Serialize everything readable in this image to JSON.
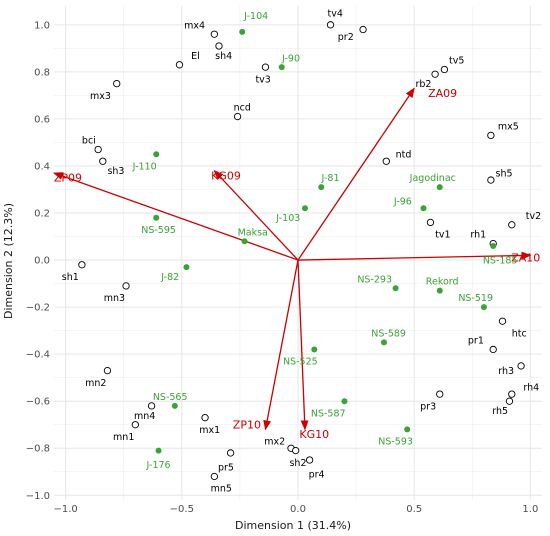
{
  "chart_data": {
    "type": "scatter",
    "subtype": "biplot",
    "xlabel": "Dimension 1 (31.4%)",
    "ylabel": "Dimension 2 (12.3%)",
    "xlim": [
      -1.05,
      1.05
    ],
    "ylim": [
      -1.02,
      1.08
    ],
    "xticks": [
      "−1.0",
      "−0.5",
      "0.0",
      "0.5",
      "1.0"
    ],
    "xtick_values": [
      -1.0,
      -0.5,
      0.0,
      0.5,
      1.0
    ],
    "yticks": [
      "−1.0",
      "−0.8",
      "−0.6",
      "−0.4",
      "−0.2",
      "0.0",
      "0.2",
      "0.4",
      "0.6",
      "0.8",
      "1.0"
    ],
    "ytick_values": [
      -1.0,
      -0.8,
      -0.6,
      -0.4,
      -0.2,
      0.0,
      0.2,
      0.4,
      0.6,
      0.8,
      1.0
    ],
    "grid": true,
    "colors": {
      "vector": "#cc0000",
      "genotype": "#3aa335",
      "variable_point": "#000000",
      "grid": "#ebebeb"
    },
    "vectors": [
      {
        "label": "ZA09",
        "x": 0.5,
        "y": 0.73,
        "lx": 0.56,
        "ly": 0.71,
        "anchor": "start"
      },
      {
        "label": "ZP09",
        "x": -1.05,
        "y": 0.37,
        "lx": -0.99,
        "ly": 0.35,
        "anchor": "middle"
      },
      {
        "label": "KG09",
        "x": -0.36,
        "y": 0.38,
        "lx": -0.31,
        "ly": 0.36,
        "anchor": "middle"
      },
      {
        "label": "ZA10",
        "x": 1.0,
        "y": 0.02,
        "lx": 0.98,
        "ly": 0.01,
        "anchor": "middle"
      },
      {
        "label": "ZP10",
        "x": -0.14,
        "y": -0.72,
        "lx": -0.22,
        "ly": -0.7,
        "anchor": "middle"
      },
      {
        "label": "KG10",
        "x": 0.03,
        "y": -0.72,
        "lx": 0.07,
        "ly": -0.74,
        "anchor": "middle"
      }
    ],
    "variables": [
      {
        "label": "tv4",
        "x": 0.14,
        "y": 1.0,
        "lx": 0.16,
        "ly": 1.05,
        "anchor": "middle"
      },
      {
        "label": "pr2",
        "x": 0.28,
        "y": 0.98,
        "lx": 0.24,
        "ly": 0.95,
        "anchor": "end"
      },
      {
        "label": "mx4",
        "x": -0.36,
        "y": 0.96,
        "lx": -0.4,
        "ly": 1.0,
        "anchor": "end"
      },
      {
        "label": "sh4",
        "x": -0.34,
        "y": 0.91,
        "lx": -0.32,
        "ly": 0.87,
        "anchor": "middle"
      },
      {
        "label": "El",
        "x": -0.51,
        "y": 0.83,
        "lx": -0.46,
        "ly": 0.87,
        "anchor": "start"
      },
      {
        "label": "tv3",
        "x": -0.14,
        "y": 0.82,
        "lx": -0.15,
        "ly": 0.77,
        "anchor": "middle"
      },
      {
        "label": "tv5",
        "x": 0.63,
        "y": 0.81,
        "lx": 0.65,
        "ly": 0.85,
        "anchor": "start"
      },
      {
        "label": "rb2",
        "x": 0.59,
        "y": 0.79,
        "lx": 0.54,
        "ly": 0.75,
        "anchor": "middle"
      },
      {
        "label": "mx3",
        "x": -0.78,
        "y": 0.75,
        "lx": -0.85,
        "ly": 0.7,
        "anchor": "middle"
      },
      {
        "label": "ncd",
        "x": -0.26,
        "y": 0.61,
        "lx": -0.24,
        "ly": 0.65,
        "anchor": "middle"
      },
      {
        "label": "mx5",
        "x": 0.83,
        "y": 0.53,
        "lx": 0.86,
        "ly": 0.57,
        "anchor": "start"
      },
      {
        "label": "bci",
        "x": -0.86,
        "y": 0.47,
        "lx": -0.87,
        "ly": 0.51,
        "anchor": "end"
      },
      {
        "label": "sh3",
        "x": -0.84,
        "y": 0.42,
        "lx": -0.82,
        "ly": 0.38,
        "anchor": "start"
      },
      {
        "label": "ntd",
        "x": 0.38,
        "y": 0.42,
        "lx": 0.42,
        "ly": 0.45,
        "anchor": "start"
      },
      {
        "label": "sh5",
        "x": 0.83,
        "y": 0.34,
        "lx": 0.85,
        "ly": 0.37,
        "anchor": "start"
      },
      {
        "label": "tv2",
        "x": 0.92,
        "y": 0.15,
        "lx": 0.98,
        "ly": 0.19,
        "anchor": "start"
      },
      {
        "label": "tv1",
        "x": 0.57,
        "y": 0.16,
        "lx": 0.59,
        "ly": 0.11,
        "anchor": "start"
      },
      {
        "label": "rh1",
        "x": 0.84,
        "y": 0.07,
        "lx": 0.81,
        "ly": 0.11,
        "anchor": "end"
      },
      {
        "label": "sh1",
        "x": -0.93,
        "y": -0.02,
        "lx": -0.98,
        "ly": -0.07,
        "anchor": "middle"
      },
      {
        "label": "mn3",
        "x": -0.74,
        "y": -0.11,
        "lx": -0.79,
        "ly": -0.16,
        "anchor": "middle"
      },
      {
        "label": "htc",
        "x": 0.88,
        "y": -0.26,
        "lx": 0.92,
        "ly": -0.31,
        "anchor": "start"
      },
      {
        "label": "pr1",
        "x": 0.84,
        "y": -0.38,
        "lx": 0.8,
        "ly": -0.34,
        "anchor": "end"
      },
      {
        "label": "rh3",
        "x": 0.96,
        "y": -0.45,
        "lx": 0.93,
        "ly": -0.47,
        "anchor": "end"
      },
      {
        "label": "mn2",
        "x": -0.82,
        "y": -0.47,
        "lx": -0.87,
        "ly": -0.52,
        "anchor": "middle"
      },
      {
        "label": "rh4",
        "x": 0.92,
        "y": -0.57,
        "lx": 0.97,
        "ly": -0.54,
        "anchor": "start"
      },
      {
        "label": "pr3",
        "x": 0.61,
        "y": -0.57,
        "lx": 0.56,
        "ly": -0.62,
        "anchor": "middle"
      },
      {
        "label": "rh5",
        "x": 0.91,
        "y": -0.6,
        "lx": 0.87,
        "ly": -0.64,
        "anchor": "middle"
      },
      {
        "label": "mn4",
        "x": -0.63,
        "y": -0.62,
        "lx": -0.66,
        "ly": -0.66,
        "anchor": "middle"
      },
      {
        "label": "mn1",
        "x": -0.7,
        "y": -0.7,
        "lx": -0.75,
        "ly": -0.75,
        "anchor": "middle"
      },
      {
        "label": "mx1",
        "x": -0.4,
        "y": -0.67,
        "lx": -0.38,
        "ly": -0.72,
        "anchor": "middle"
      },
      {
        "label": "mx2",
        "x": -0.03,
        "y": -0.8,
        "lx": -0.1,
        "ly": -0.77,
        "anchor": "middle"
      },
      {
        "label": "sh2",
        "x": -0.01,
        "y": -0.81,
        "lx": 0.0,
        "ly": -0.86,
        "anchor": "middle"
      },
      {
        "label": "pr4",
        "x": 0.05,
        "y": -0.85,
        "lx": 0.08,
        "ly": -0.91,
        "anchor": "middle"
      },
      {
        "label": "pr5",
        "x": -0.29,
        "y": -0.82,
        "lx": -0.31,
        "ly": -0.88,
        "anchor": "middle"
      },
      {
        "label": "mn5",
        "x": -0.36,
        "y": -0.92,
        "lx": -0.33,
        "ly": -0.97,
        "anchor": "middle"
      }
    ],
    "genotypes": [
      {
        "label": "J-104",
        "x": -0.24,
        "y": 0.97,
        "lx": -0.18,
        "ly": 1.04,
        "anchor": "middle"
      },
      {
        "label": "J-90",
        "x": -0.07,
        "y": 0.82,
        "lx": -0.03,
        "ly": 0.86,
        "anchor": "middle"
      },
      {
        "label": "J-110",
        "x": -0.61,
        "y": 0.45,
        "lx": -0.66,
        "ly": 0.4,
        "anchor": "middle"
      },
      {
        "label": "J-81",
        "x": 0.1,
        "y": 0.31,
        "lx": 0.14,
        "ly": 0.35,
        "anchor": "middle"
      },
      {
        "label": "Jagodinac",
        "x": 0.61,
        "y": 0.31,
        "lx": 0.58,
        "ly": 0.35,
        "anchor": "middle"
      },
      {
        "label": "J-96",
        "x": 0.54,
        "y": 0.22,
        "lx": 0.49,
        "ly": 0.25,
        "anchor": "end"
      },
      {
        "label": "J-103",
        "x": 0.03,
        "y": 0.22,
        "lx": 0.01,
        "ly": 0.18,
        "anchor": "end"
      },
      {
        "label": "NS-595",
        "x": -0.61,
        "y": 0.18,
        "lx": -0.6,
        "ly": 0.13,
        "anchor": "middle"
      },
      {
        "label": "Maksa",
        "x": -0.23,
        "y": 0.08,
        "lx": -0.26,
        "ly": 0.12,
        "anchor": "start"
      },
      {
        "label": "NS-185",
        "x": 0.84,
        "y": 0.06,
        "lx": 0.87,
        "ly": 0.0,
        "anchor": "middle"
      },
      {
        "label": "J-82",
        "x": -0.48,
        "y": -0.03,
        "lx": -0.55,
        "ly": -0.07,
        "anchor": "middle"
      },
      {
        "label": "NS-293",
        "x": 0.42,
        "y": -0.12,
        "lx": 0.33,
        "ly": -0.08,
        "anchor": "middle"
      },
      {
        "label": "Rekord",
        "x": 0.61,
        "y": -0.13,
        "lx": 0.55,
        "ly": -0.09,
        "anchor": "start"
      },
      {
        "label": "NS-519",
        "x": 0.8,
        "y": -0.2,
        "lx": 0.69,
        "ly": -0.16,
        "anchor": "start"
      },
      {
        "label": "NS-589",
        "x": 0.37,
        "y": -0.35,
        "lx": 0.39,
        "ly": -0.31,
        "anchor": "middle"
      },
      {
        "label": "NS-525",
        "x": 0.07,
        "y": -0.38,
        "lx": 0.01,
        "ly": -0.43,
        "anchor": "middle"
      },
      {
        "label": "NS-565",
        "x": -0.53,
        "y": -0.62,
        "lx": -0.55,
        "ly": -0.58,
        "anchor": "middle"
      },
      {
        "label": "NS-587",
        "x": 0.2,
        "y": -0.6,
        "lx": 0.13,
        "ly": -0.65,
        "anchor": "middle"
      },
      {
        "label": "NS-593",
        "x": 0.47,
        "y": -0.72,
        "lx": 0.42,
        "ly": -0.77,
        "anchor": "middle"
      },
      {
        "label": "J-176",
        "x": -0.6,
        "y": -0.81,
        "lx": -0.6,
        "ly": -0.87,
        "anchor": "middle"
      }
    ]
  }
}
